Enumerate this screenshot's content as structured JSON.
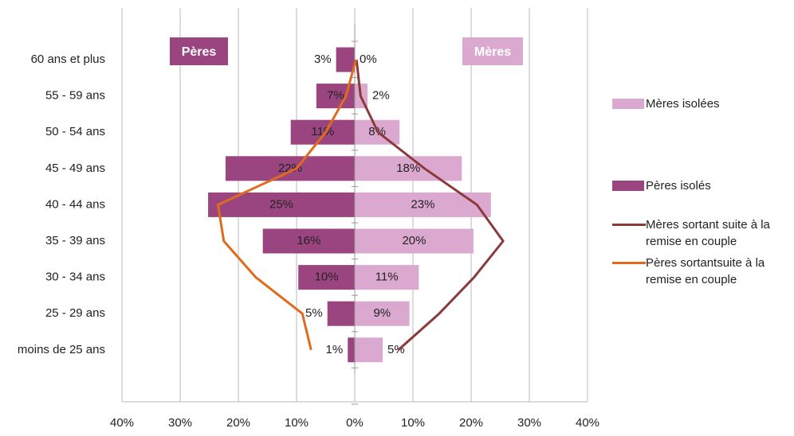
{
  "chart_data": {
    "type": "bar",
    "orientation": "horizontal",
    "categories": [
      "60 ans et plus",
      "55 - 59 ans",
      "50 - 54 ans",
      "45 - 49 ans",
      "40 - 44 ans",
      "35 - 39 ans",
      "30 - 34 ans",
      "25 - 29 ans",
      "moins de 25 ans"
    ],
    "annotations": [
      "Pères",
      "Mères"
    ],
    "series": [
      {
        "name": "Mères isolées",
        "type": "bar",
        "color": "#dba9cf",
        "values": [
          0,
          2.2,
          7.7,
          18.4,
          23.4,
          20.4,
          11,
          9.4,
          4.8
        ],
        "value_labels": [
          "0%",
          "2%",
          "8%",
          "18%",
          "23%",
          "20%",
          "11%",
          "9%",
          "5%"
        ]
      },
      {
        "name": "Pères isolés",
        "type": "bar",
        "color": "#9b4580",
        "values": [
          -3.2,
          -6.6,
          -11,
          -22.2,
          -25.2,
          -15.8,
          -9.7,
          -4.7,
          -1.2
        ],
        "value_labels": [
          "3%",
          "7%",
          "11%",
          "22%",
          "25%",
          "16%",
          "10%",
          "5%",
          "1%"
        ]
      },
      {
        "name": "Mères sortant suite à la remise en couple",
        "type": "line",
        "color": "#8b3a3a",
        "values": [
          0.3,
          1,
          4,
          12,
          21,
          25.5,
          20.5,
          14.5,
          7.5
        ]
      },
      {
        "name": "Pères sortantsuite à la remise en couple",
        "type": "line",
        "color": "#e06a1e",
        "values": [
          0.2,
          -1.5,
          -5,
          -10,
          -23.5,
          -22.5,
          -17,
          -9,
          -7.5
        ]
      }
    ],
    "xlim": [
      -40,
      40
    ],
    "xticks": [
      {
        "value": -40,
        "label": "40%"
      },
      {
        "value": -30,
        "label": "30%"
      },
      {
        "value": -20,
        "label": "20%"
      },
      {
        "value": -10,
        "label": "10%"
      },
      {
        "value": 0,
        "label": "0%"
      },
      {
        "value": 10,
        "label": "10%"
      },
      {
        "value": 20,
        "label": "20%"
      },
      {
        "value": 30,
        "label": "30%"
      },
      {
        "value": 40,
        "label": "40%"
      }
    ],
    "grid": true
  }
}
